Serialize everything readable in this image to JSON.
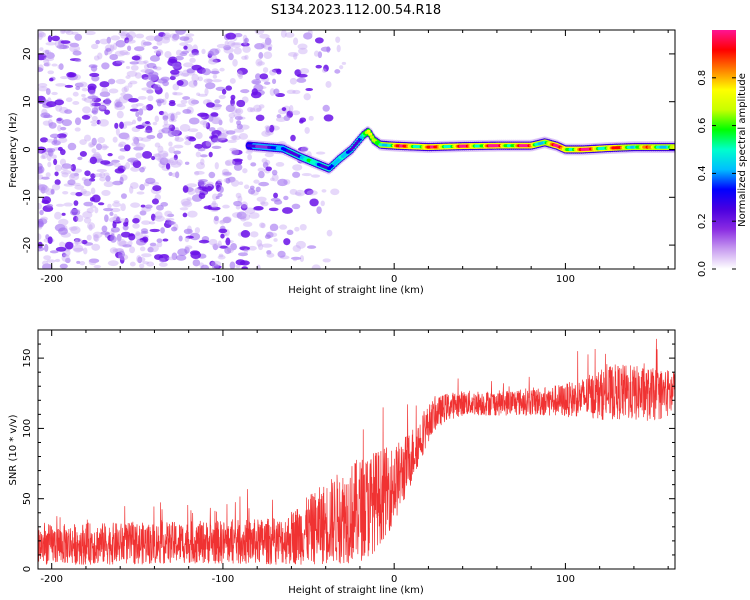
{
  "title": "S134.2023.112.00.54.R18",
  "chart_data": [
    {
      "type": "heatmap",
      "xlabel": "Height of straight line (km)",
      "ylabel": "Frequency (Hz)",
      "xlim": [
        -208,
        164
      ],
      "ylim": [
        -25,
        25
      ],
      "xticks": [
        -200,
        -100,
        0,
        100
      ],
      "yticks": [
        -20,
        -10,
        0,
        10,
        20
      ],
      "colorbar": {
        "label": "Normalized spectral amplitude",
        "range": [
          0,
          1
        ],
        "ticks": [
          "0.0",
          "0.2",
          "0.4",
          "0.6",
          "0.8"
        ],
        "tick_values": [
          0,
          0.2,
          0.4,
          0.6,
          0.8
        ],
        "colormap": [
          "#ffffff",
          "#c89cf0",
          "#8a2be2",
          "#4a00e0",
          "#0000ff",
          "#00bfff",
          "#00ffcc",
          "#00ff00",
          "#c8ff00",
          "#ffff00",
          "#ff8000",
          "#ff0000",
          "#ff1493"
        ]
      },
      "noise_region_x": [
        -208,
        -40
      ],
      "ridge": {
        "x": [
          -85,
          -75,
          -65,
          -55,
          -45,
          -38,
          -32,
          -25,
          -18,
          -15,
          -12,
          -8,
          0,
          20,
          40,
          60,
          80,
          88,
          95,
          100,
          110,
          125,
          140,
          164
        ],
        "y": [
          0.8,
          0.5,
          0.2,
          -1.5,
          -3.0,
          -4.0,
          -2.0,
          0.0,
          3.0,
          3.8,
          2.0,
          1.0,
          0.8,
          0.5,
          0.7,
          0.8,
          0.8,
          1.5,
          0.8,
          0.0,
          0.0,
          0.3,
          0.5,
          0.5
        ],
        "amplitude": [
          0.2,
          0.3,
          0.35,
          0.45,
          0.5,
          0.45,
          0.4,
          0.4,
          0.55,
          0.65,
          0.6,
          0.7,
          0.85,
          0.85,
          0.9,
          0.95,
          0.9,
          0.7,
          0.9,
          0.95,
          0.95,
          0.85,
          0.8,
          0.7
        ]
      }
    },
    {
      "type": "line",
      "xlabel": "Height of straight line (km)",
      "ylabel": "SNR (10 * v/v)",
      "xlim": [
        -208,
        164
      ],
      "ylim": [
        0,
        170
      ],
      "xticks": [
        -200,
        -100,
        0,
        100
      ],
      "yticks": [
        0,
        50,
        100,
        150
      ],
      "color": "#f03232",
      "series": [
        {
          "x": [
            -208,
            -180,
            -150,
            -120,
            -90,
            -65,
            -55,
            -45,
            -35,
            -25,
            -15,
            -8,
            0,
            8,
            15,
            22,
            30,
            40,
            60,
            80,
            100,
            110,
            120,
            130,
            140,
            150,
            164
          ],
          "y": [
            17,
            18,
            18,
            19,
            19,
            20,
            25,
            30,
            35,
            40,
            45,
            52,
            60,
            75,
            92,
            108,
            115,
            118,
            118,
            119,
            120,
            122,
            124,
            126,
            125,
            124,
            125
          ],
          "spread": [
            14,
            15,
            15,
            15,
            16,
            17,
            22,
            27,
            32,
            36,
            38,
            34,
            28,
            22,
            16,
            12,
            10,
            9,
            9,
            10,
            12,
            14,
            18,
            20,
            20,
            19,
            17
          ]
        }
      ]
    }
  ]
}
